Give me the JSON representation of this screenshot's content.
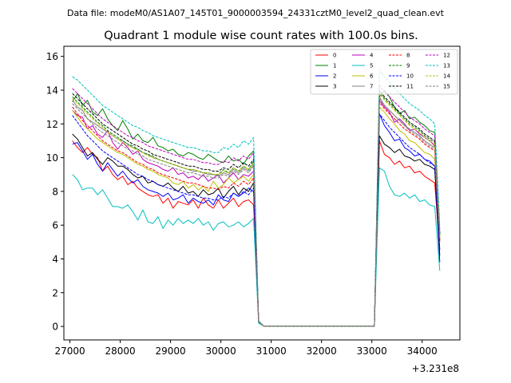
{
  "chart_data": {
    "type": "line",
    "suptitle": "Data file: modeM0/AS1A07_145T01_9000003594_24331cztM0_level2_quad_clean.evt",
    "title": "Quadrant 1 module wise count rates with 100.0s bins.",
    "xlabel": "",
    "ylabel": "",
    "x_offset_label": "+3.231e8",
    "xlim": [
      26880,
      34750
    ],
    "ylim": [
      -0.8,
      16.6
    ],
    "x_ticks": [
      27000,
      28000,
      29000,
      30000,
      31000,
      32000,
      33000,
      34000
    ],
    "y_ticks": [
      0,
      2,
      4,
      6,
      8,
      10,
      12,
      14,
      16
    ],
    "legend_position": "top-right",
    "x": [
      27050,
      27150,
      27250,
      27350,
      27450,
      27550,
      27650,
      27750,
      27850,
      27950,
      28050,
      28150,
      28250,
      28350,
      28450,
      28550,
      28650,
      28750,
      28850,
      28950,
      29050,
      29150,
      29250,
      29350,
      29450,
      29550,
      29650,
      29750,
      29850,
      29950,
      30050,
      30150,
      30250,
      30350,
      30450,
      30550,
      30650,
      30750,
      30850,
      30950,
      33050,
      33150,
      33250,
      33350,
      33450,
      33550,
      33650,
      33750,
      33850,
      33950,
      34050,
      34150,
      34250,
      34350
    ],
    "series": [
      {
        "name": "0",
        "color": "#ff0000",
        "dash": "solid",
        "values": [
          11.0,
          10.6,
          10.3,
          10.6,
          10.2,
          10.0,
          9.2,
          9.5,
          9.0,
          8.7,
          8.9,
          8.4,
          8.6,
          8.2,
          8.0,
          7.8,
          7.7,
          7.8,
          7.3,
          7.6,
          7.0,
          7.4,
          7.3,
          7.2,
          7.5,
          7.0,
          7.6,
          7.2,
          7.0,
          7.5,
          7.0,
          7.3,
          7.6,
          7.1,
          7.4,
          7.5,
          7.2,
          0.3,
          0.02,
          0.02,
          0.02,
          11.0,
          10.2,
          10.0,
          9.6,
          9.8,
          9.4,
          9.5,
          9.1,
          9.2,
          8.9,
          8.7,
          8.5,
          4.5
        ]
      },
      {
        "name": "1",
        "color": "#008000",
        "dash": "solid",
        "values": [
          13.3,
          13.8,
          13.1,
          13.4,
          12.7,
          12.5,
          12.9,
          12.3,
          11.9,
          11.6,
          12.2,
          11.7,
          11.1,
          11.4,
          11.0,
          10.9,
          11.2,
          10.7,
          10.6,
          10.4,
          10.5,
          10.2,
          10.1,
          10.3,
          10.2,
          10.0,
          9.9,
          10.2,
          10.0,
          9.8,
          9.7,
          10.1,
          9.8,
          9.9,
          9.6,
          10.1,
          10.4,
          0.25,
          0.02,
          0.02,
          0.02,
          13.6,
          14.0,
          13.6,
          13.0,
          12.6,
          12.8,
          12.3,
          12.4,
          12.1,
          11.9,
          11.6,
          11.5,
          5.5
        ]
      },
      {
        "name": "2",
        "color": "#0000ff",
        "dash": "solid",
        "values": [
          10.8,
          10.9,
          10.4,
          9.9,
          10.2,
          9.6,
          9.2,
          9.7,
          9.3,
          8.9,
          9.2,
          8.8,
          8.5,
          8.7,
          8.3,
          8.1,
          8.0,
          7.9,
          7.7,
          7.9,
          7.5,
          7.6,
          7.8,
          7.3,
          7.6,
          7.4,
          7.3,
          7.5,
          7.2,
          7.8,
          7.5,
          7.4,
          7.9,
          7.7,
          7.9,
          8.2,
          8.0,
          0.3,
          0.02,
          0.02,
          0.02,
          12.6,
          11.9,
          11.5,
          11.0,
          11.1,
          10.6,
          10.4,
          10.1,
          10.2,
          9.9,
          9.8,
          9.5,
          3.8
        ]
      },
      {
        "name": "3",
        "color": "#000000",
        "dash": "solid",
        "values": [
          11.4,
          11.1,
          10.6,
          10.1,
          10.3,
          9.9,
          9.6,
          10.0,
          9.8,
          9.5,
          9.5,
          9.3,
          9.0,
          8.8,
          8.9,
          8.5,
          8.6,
          8.4,
          8.3,
          8.5,
          8.2,
          8.0,
          8.3,
          7.9,
          8.0,
          7.7,
          8.1,
          7.8,
          7.9,
          8.2,
          7.6,
          8.0,
          8.3,
          7.8,
          8.2,
          8.0,
          8.5,
          0.3,
          0.02,
          0.02,
          0.02,
          11.3,
          10.8,
          10.6,
          10.3,
          10.5,
          10.1,
          10.0,
          9.8,
          9.9,
          9.6,
          9.5,
          9.3,
          4.2
        ]
      },
      {
        "name": "4",
        "color": "#bf00bf",
        "dash": "solid",
        "values": [
          12.8,
          12.5,
          12.4,
          11.7,
          11.9,
          11.4,
          11.2,
          11.6,
          10.9,
          10.5,
          10.9,
          10.6,
          10.2,
          10.4,
          9.9,
          9.7,
          9.6,
          9.5,
          9.3,
          9.2,
          9.4,
          9.0,
          9.1,
          8.8,
          8.9,
          8.7,
          9.0,
          8.6,
          8.8,
          9.0,
          8.5,
          8.8,
          9.1,
          8.7,
          9.0,
          8.9,
          9.2,
          0.3,
          0.02,
          0.02,
          0.02,
          13.4,
          13.0,
          12.7,
          12.1,
          12.3,
          12.0,
          11.6,
          11.7,
          11.4,
          11.2,
          11.0,
          10.7,
          5.0
        ]
      },
      {
        "name": "5",
        "color": "#00bfbf",
        "dash": "solid",
        "values": [
          9.0,
          8.7,
          8.1,
          8.2,
          8.2,
          7.8,
          8.1,
          7.6,
          7.1,
          7.1,
          7.0,
          7.2,
          6.8,
          6.3,
          6.9,
          6.2,
          6.1,
          6.5,
          5.8,
          6.3,
          6.0,
          6.4,
          6.1,
          6.3,
          6.1,
          6.4,
          6.0,
          6.2,
          5.7,
          6.1,
          6.2,
          5.9,
          6.0,
          6.2,
          5.9,
          6.1,
          6.4,
          0.2,
          0.02,
          0.02,
          0.02,
          9.4,
          9.2,
          8.3,
          7.8,
          7.7,
          7.9,
          7.6,
          7.8,
          7.4,
          7.5,
          7.2,
          7.1,
          3.3
        ]
      },
      {
        "name": "6",
        "color": "#bfbf00",
        "dash": "solid",
        "values": [
          12.8,
          12.4,
          12.0,
          11.7,
          11.4,
          11.1,
          10.9,
          10.7,
          10.5,
          10.3,
          10.2,
          10.0,
          9.8,
          9.6,
          9.5,
          9.3,
          9.2,
          9.0,
          8.9,
          8.8,
          8.5,
          8.4,
          8.6,
          8.2,
          8.4,
          8.1,
          8.3,
          8.0,
          8.6,
          8.2,
          8.4,
          8.8,
          8.5,
          8.7,
          8.9,
          8.6,
          9.0,
          0.3,
          0.02,
          0.02,
          0.02,
          13.0,
          12.7,
          12.3,
          12.0,
          11.6,
          11.4,
          11.0,
          10.9,
          10.6,
          10.3,
          10.2,
          9.9,
          5.0
        ]
      },
      {
        "name": "7",
        "color": "#808080",
        "dash": "solid",
        "values": [
          13.4,
          13.0,
          12.8,
          12.3,
          12.1,
          11.9,
          11.7,
          11.5,
          11.3,
          11.1,
          11.0,
          10.8,
          10.6,
          10.5,
          10.3,
          10.2,
          10.0,
          9.9,
          9.8,
          9.7,
          9.6,
          9.5,
          9.4,
          9.3,
          9.2,
          9.2,
          9.1,
          9.0,
          9.0,
          8.9,
          9.1,
          9.0,
          9.3,
          9.1,
          9.4,
          9.2,
          9.6,
          0.3,
          0.02,
          0.02,
          0.02,
          13.6,
          13.1,
          12.8,
          12.5,
          12.2,
          11.9,
          11.7,
          11.5,
          11.3,
          11.0,
          10.8,
          10.6,
          5.2
        ]
      },
      {
        "name": "8",
        "color": "#ff0000",
        "dash": "dashed",
        "values": [
          13.0,
          12.6,
          12.2,
          11.9,
          11.6,
          11.3,
          11.0,
          10.8,
          10.6,
          10.4,
          10.3,
          10.1,
          9.9,
          9.7,
          9.6,
          9.4,
          9.3,
          9.1,
          9.0,
          8.9,
          8.8,
          8.7,
          8.6,
          8.5,
          8.5,
          8.4,
          8.3,
          8.2,
          8.2,
          8.1,
          8.3,
          8.2,
          8.5,
          8.3,
          8.6,
          8.4,
          8.8,
          0.3,
          0.02,
          0.02,
          0.02,
          13.3,
          12.9,
          12.6,
          12.3,
          12.0,
          11.7,
          11.5,
          11.3,
          11.1,
          10.8,
          10.6,
          10.4,
          5.1
        ]
      },
      {
        "name": "9",
        "color": "#008000",
        "dash": "dashed",
        "values": [
          13.6,
          13.3,
          13.0,
          12.7,
          12.4,
          12.1,
          11.9,
          11.6,
          11.4,
          11.2,
          11.0,
          10.8,
          10.7,
          10.5,
          10.3,
          10.2,
          10.1,
          9.9,
          9.8,
          9.7,
          9.6,
          9.5,
          9.4,
          9.3,
          9.3,
          9.2,
          9.1,
          9.1,
          9.0,
          9.0,
          9.3,
          9.1,
          9.4,
          9.2,
          9.5,
          9.3,
          9.8,
          0.3,
          0.02,
          0.02,
          0.02,
          13.9,
          13.5,
          13.2,
          12.9,
          12.6,
          12.3,
          12.0,
          11.8,
          11.6,
          11.3,
          11.1,
          10.9,
          5.4
        ]
      },
      {
        "name": "10",
        "color": "#0000ff",
        "dash": "dashed",
        "values": [
          12.5,
          12.1,
          11.7,
          11.3,
          11.0,
          10.7,
          10.4,
          10.2,
          10.0,
          9.8,
          9.6,
          9.4,
          9.2,
          9.0,
          8.9,
          8.7,
          8.6,
          8.4,
          8.3,
          8.2,
          8.1,
          8.0,
          7.9,
          7.8,
          7.8,
          7.7,
          7.6,
          7.6,
          7.5,
          7.5,
          7.7,
          7.6,
          7.9,
          7.7,
          8.0,
          7.8,
          8.2,
          0.3,
          0.02,
          0.02,
          0.02,
          12.6,
          12.2,
          11.8,
          11.5,
          11.2,
          10.9,
          10.6,
          10.4,
          10.2,
          9.9,
          9.7,
          9.5,
          4.6
        ]
      },
      {
        "name": "11",
        "color": "#000000",
        "dash": "dashed",
        "values": [
          13.8,
          13.5,
          13.2,
          12.9,
          12.6,
          12.3,
          12.0,
          11.8,
          11.6,
          11.4,
          11.2,
          11.0,
          10.8,
          10.7,
          10.5,
          10.4,
          10.2,
          10.1,
          10.0,
          9.9,
          9.8,
          9.7,
          9.6,
          9.5,
          9.5,
          9.4,
          9.3,
          9.3,
          9.2,
          9.2,
          9.4,
          9.3,
          9.6,
          9.4,
          9.7,
          9.5,
          9.9,
          0.3,
          0.02,
          0.02,
          0.02,
          14.0,
          13.6,
          13.3,
          13.0,
          12.7,
          12.4,
          12.1,
          11.9,
          11.7,
          11.4,
          11.2,
          11.0,
          5.5
        ]
      },
      {
        "name": "12",
        "color": "#bf00bf",
        "dash": "dashed",
        "values": [
          14.1,
          13.8,
          13.5,
          13.2,
          12.9,
          12.6,
          12.3,
          12.1,
          11.9,
          11.7,
          11.5,
          11.3,
          11.2,
          11.0,
          10.9,
          10.7,
          10.6,
          10.5,
          10.4,
          10.3,
          10.2,
          10.1,
          10.0,
          9.9,
          9.9,
          9.8,
          9.7,
          9.7,
          9.6,
          9.6,
          9.8,
          9.7,
          10.0,
          9.8,
          10.1,
          9.9,
          10.3,
          0.3,
          0.02,
          0.02,
          0.02,
          14.3,
          13.9,
          13.6,
          13.3,
          13.0,
          12.7,
          12.4,
          12.2,
          12.0,
          11.7,
          11.5,
          11.3,
          5.7
        ]
      },
      {
        "name": "13",
        "color": "#00bfbf",
        "dash": "dashed",
        "values": [
          14.8,
          14.6,
          14.3,
          14.0,
          13.7,
          13.4,
          13.1,
          12.9,
          12.7,
          12.5,
          12.3,
          12.1,
          11.9,
          11.8,
          11.6,
          11.5,
          11.3,
          11.2,
          11.1,
          11.0,
          10.9,
          10.8,
          10.7,
          10.6,
          10.6,
          10.5,
          10.4,
          10.4,
          10.3,
          10.3,
          10.6,
          10.5,
          10.8,
          10.6,
          11.0,
          10.8,
          11.2,
          0.35,
          0.02,
          0.02,
          0.02,
          15.2,
          14.8,
          14.5,
          14.1,
          13.8,
          13.5,
          13.2,
          13.0,
          12.8,
          12.5,
          12.3,
          12.0,
          6.0
        ]
      },
      {
        "name": "14",
        "color": "#bfbf00",
        "dash": "dashed",
        "values": [
          13.5,
          13.2,
          12.9,
          12.6,
          12.3,
          12.0,
          11.8,
          11.5,
          11.3,
          11.1,
          10.9,
          10.7,
          10.6,
          10.4,
          10.3,
          10.1,
          10.0,
          9.9,
          9.8,
          9.7,
          9.6,
          9.5,
          9.4,
          9.3,
          9.3,
          9.2,
          9.1,
          9.1,
          9.0,
          9.0,
          9.2,
          9.1,
          9.4,
          9.2,
          9.5,
          9.3,
          9.7,
          0.3,
          0.02,
          0.02,
          0.02,
          13.8,
          13.4,
          13.1,
          12.8,
          12.5,
          12.2,
          11.9,
          11.7,
          11.5,
          11.2,
          11.0,
          10.8,
          5.3
        ]
      },
      {
        "name": "15",
        "color": "#808080",
        "dash": "dashed",
        "values": [
          13.2,
          12.9,
          12.6,
          12.3,
          12.0,
          11.7,
          11.5,
          11.3,
          11.1,
          10.9,
          10.7,
          10.5,
          10.4,
          10.2,
          10.1,
          9.9,
          9.8,
          9.7,
          9.6,
          9.5,
          9.4,
          9.3,
          9.2,
          9.1,
          9.1,
          9.0,
          8.9,
          8.9,
          8.8,
          8.8,
          9.0,
          8.9,
          9.2,
          9.0,
          9.3,
          9.1,
          9.5,
          0.3,
          0.02,
          0.02,
          0.02,
          13.5,
          13.1,
          12.8,
          12.5,
          12.2,
          11.9,
          11.6,
          11.4,
          11.2,
          10.9,
          10.7,
          10.5,
          5.2
        ]
      }
    ]
  }
}
